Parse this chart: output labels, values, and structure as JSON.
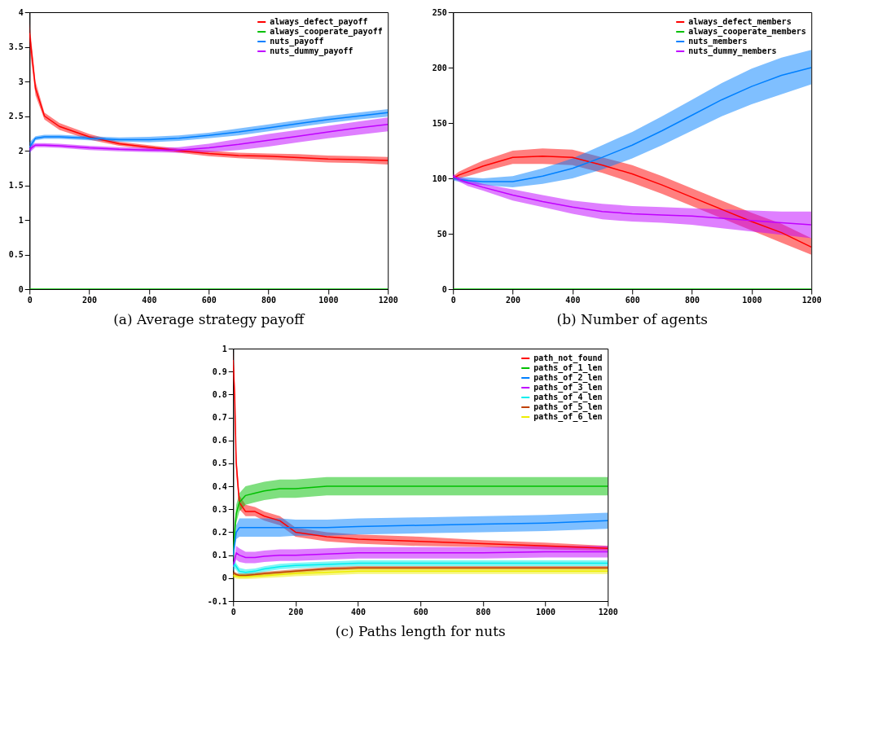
{
  "chart_data": [
    {
      "type": "line",
      "title": "(a) Average strategy payoff",
      "legend": "top right",
      "grid": false,
      "x": [
        0,
        20,
        50,
        100,
        200,
        300,
        400,
        500,
        600,
        700,
        800,
        900,
        1000,
        1100,
        1200
      ],
      "xlim": [
        0,
        1200
      ],
      "xticks": [
        0,
        200,
        400,
        600,
        800,
        1000,
        1200
      ],
      "ylim": [
        0,
        4
      ],
      "yticks": [
        0,
        0.5,
        1,
        1.5,
        2,
        2.5,
        3,
        3.5,
        4
      ],
      "series": [
        {
          "name": "always_defect_payoff",
          "color": "#ff0000",
          "values": [
            3.7,
            2.9,
            2.5,
            2.35,
            2.2,
            2.1,
            2.05,
            2.0,
            1.96,
            1.93,
            1.92,
            1.9,
            1.88,
            1.87,
            1.86
          ],
          "lower": [
            3.5,
            2.8,
            2.45,
            2.3,
            2.16,
            2.07,
            2.02,
            1.97,
            1.92,
            1.89,
            1.87,
            1.85,
            1.83,
            1.82,
            1.8
          ],
          "upper": [
            3.85,
            3.0,
            2.55,
            2.4,
            2.24,
            2.13,
            2.08,
            2.03,
            2.0,
            1.97,
            1.96,
            1.95,
            1.93,
            1.92,
            1.91
          ]
        },
        {
          "name": "always_cooperate_payoff",
          "color": "#00c000",
          "values": [
            0,
            0,
            0,
            0,
            0,
            0,
            0,
            0,
            0,
            0,
            0,
            0,
            0,
            0,
            0
          ]
        },
        {
          "name": "nuts_payoff",
          "color": "#0080ff",
          "values": [
            2.05,
            2.18,
            2.2,
            2.2,
            2.18,
            2.16,
            2.16,
            2.18,
            2.22,
            2.27,
            2.33,
            2.39,
            2.45,
            2.5,
            2.55
          ],
          "lower": [
            1.95,
            2.15,
            2.17,
            2.17,
            2.15,
            2.13,
            2.12,
            2.14,
            2.18,
            2.22,
            2.28,
            2.34,
            2.4,
            2.45,
            2.49
          ],
          "upper": [
            2.12,
            2.21,
            2.23,
            2.23,
            2.21,
            2.19,
            2.2,
            2.22,
            2.26,
            2.32,
            2.38,
            2.44,
            2.5,
            2.55,
            2.6
          ]
        },
        {
          "name": "nuts_dummy_payoff",
          "color": "#c000ff",
          "values": [
            2.02,
            2.08,
            2.08,
            2.07,
            2.04,
            2.02,
            2.01,
            2.01,
            2.04,
            2.09,
            2.15,
            2.21,
            2.27,
            2.33,
            2.38
          ],
          "lower": [
            1.97,
            2.05,
            2.05,
            2.04,
            2.01,
            1.99,
            1.98,
            1.97,
            1.98,
            2.01,
            2.06,
            2.12,
            2.18,
            2.23,
            2.28
          ],
          "upper": [
            2.07,
            2.11,
            2.11,
            2.1,
            2.07,
            2.05,
            2.04,
            2.05,
            2.1,
            2.17,
            2.24,
            2.3,
            2.36,
            2.42,
            2.48
          ]
        }
      ]
    },
    {
      "type": "line",
      "title": "(b) Number of agents",
      "legend": "top right",
      "grid": false,
      "x": [
        0,
        20,
        50,
        100,
        200,
        300,
        400,
        500,
        600,
        700,
        800,
        900,
        1000,
        1100,
        1200
      ],
      "xlim": [
        0,
        1200
      ],
      "xticks": [
        0,
        200,
        400,
        600,
        800,
        1000,
        1200
      ],
      "ylim": [
        0,
        250
      ],
      "yticks": [
        0,
        50,
        100,
        150,
        200,
        250
      ],
      "series": [
        {
          "name": "always_defect_members",
          "color": "#ff0000",
          "values": [
            100,
            103,
            106,
            111,
            119,
            120,
            119,
            112,
            104,
            94,
            83,
            72,
            61,
            51,
            38
          ],
          "lower": [
            98,
            100,
            102,
            106,
            113,
            113,
            112,
            105,
            96,
            86,
            75,
            64,
            53,
            42,
            31
          ],
          "upper": [
            102,
            106,
            110,
            116,
            125,
            127,
            126,
            119,
            112,
            102,
            91,
            80,
            69,
            59,
            46
          ]
        },
        {
          "name": "always_cooperate_members",
          "color": "#00c000",
          "values": [
            0,
            0,
            0,
            0,
            0,
            0,
            0,
            0,
            0,
            0,
            0,
            0,
            0,
            0,
            0
          ]
        },
        {
          "name": "nuts_members",
          "color": "#0080ff",
          "values": [
            100,
            99,
            98,
            97,
            97,
            102,
            109,
            119,
            130,
            143,
            157,
            171,
            183,
            193,
            200
          ],
          "lower": [
            98,
            97,
            95,
            94,
            92,
            95,
            100,
            108,
            118,
            130,
            143,
            156,
            167,
            176,
            185
          ],
          "upper": [
            102,
            101,
            101,
            100,
            102,
            109,
            118,
            130,
            142,
            156,
            171,
            186,
            199,
            209,
            216
          ]
        },
        {
          "name": "nuts_dummy_members",
          "color": "#c000ff",
          "values": [
            102,
            99,
            96,
            92,
            85,
            79,
            74,
            70,
            68,
            67,
            66,
            64,
            62,
            60,
            58
          ],
          "lower": [
            100,
            97,
            93,
            89,
            80,
            74,
            68,
            63,
            61,
            60,
            58,
            55,
            52,
            49,
            46
          ],
          "upper": [
            104,
            101,
            99,
            95,
            90,
            85,
            80,
            77,
            75,
            74,
            73,
            72,
            71,
            70,
            70
          ]
        }
      ]
    },
    {
      "type": "line",
      "title": "(c) Paths length for nuts",
      "legend": "top right",
      "grid": false,
      "x": [
        0,
        5,
        10,
        20,
        40,
        70,
        100,
        150,
        200,
        300,
        400,
        600,
        800,
        1000,
        1200
      ],
      "xlim": [
        0,
        1200
      ],
      "xticks": [
        0,
        200,
        400,
        600,
        800,
        1000,
        1200
      ],
      "ylim": [
        -0.1,
        1
      ],
      "yticks": [
        -0.1,
        0,
        0.1,
        0.2,
        0.3,
        0.4,
        0.5,
        0.6,
        0.7,
        0.8,
        0.9,
        1
      ],
      "series": [
        {
          "name": "path_not_found",
          "color": "#ff0000",
          "values": [
            0.95,
            0.8,
            0.5,
            0.33,
            0.29,
            0.29,
            0.27,
            0.25,
            0.2,
            0.18,
            0.17,
            0.16,
            0.15,
            0.14,
            0.13
          ],
          "lower": [
            0.9,
            0.75,
            0.45,
            0.3,
            0.27,
            0.27,
            0.25,
            0.23,
            0.18,
            0.16,
            0.15,
            0.14,
            0.135,
            0.125,
            0.12
          ],
          "upper": [
            0.99,
            0.85,
            0.55,
            0.36,
            0.32,
            0.31,
            0.29,
            0.27,
            0.22,
            0.2,
            0.19,
            0.18,
            0.165,
            0.155,
            0.14
          ]
        },
        {
          "name": "paths_of_1_len",
          "color": "#00c000",
          "values": [
            0.1,
            0.2,
            0.28,
            0.33,
            0.36,
            0.37,
            0.38,
            0.39,
            0.39,
            0.4,
            0.4,
            0.4,
            0.4,
            0.4,
            0.4
          ],
          "lower": [
            0.07,
            0.16,
            0.24,
            0.29,
            0.32,
            0.33,
            0.34,
            0.35,
            0.35,
            0.36,
            0.36,
            0.36,
            0.36,
            0.36,
            0.36
          ],
          "upper": [
            0.13,
            0.24,
            0.32,
            0.37,
            0.4,
            0.41,
            0.42,
            0.43,
            0.43,
            0.44,
            0.44,
            0.44,
            0.44,
            0.44,
            0.44
          ]
        },
        {
          "name": "paths_of_2_len",
          "color": "#0080ff",
          "values": [
            0.1,
            0.15,
            0.2,
            0.22,
            0.22,
            0.22,
            0.22,
            0.22,
            0.22,
            0.22,
            0.225,
            0.23,
            0.235,
            0.24,
            0.25
          ],
          "lower": [
            0.07,
            0.12,
            0.17,
            0.18,
            0.18,
            0.18,
            0.18,
            0.18,
            0.185,
            0.185,
            0.19,
            0.195,
            0.2,
            0.205,
            0.215
          ],
          "upper": [
            0.13,
            0.18,
            0.23,
            0.26,
            0.26,
            0.26,
            0.26,
            0.26,
            0.255,
            0.255,
            0.26,
            0.265,
            0.27,
            0.275,
            0.285
          ]
        },
        {
          "name": "paths_of_3_len",
          "color": "#c000ff",
          "values": [
            0.05,
            0.08,
            0.11,
            0.1,
            0.09,
            0.09,
            0.095,
            0.1,
            0.1,
            0.105,
            0.11,
            0.11,
            0.11,
            0.115,
            0.115
          ],
          "lower": [
            0.03,
            0.06,
            0.08,
            0.07,
            0.065,
            0.065,
            0.07,
            0.075,
            0.075,
            0.08,
            0.085,
            0.085,
            0.085,
            0.09,
            0.09
          ],
          "upper": [
            0.07,
            0.1,
            0.14,
            0.13,
            0.115,
            0.115,
            0.12,
            0.125,
            0.125,
            0.13,
            0.135,
            0.135,
            0.135,
            0.14,
            0.14
          ]
        },
        {
          "name": "paths_of_4_len",
          "color": "#00eeee",
          "values": [
            0.05,
            0.06,
            0.05,
            0.03,
            0.025,
            0.03,
            0.04,
            0.05,
            0.055,
            0.06,
            0.065,
            0.065,
            0.065,
            0.065,
            0.065
          ],
          "lower": [
            0.03,
            0.04,
            0.035,
            0.015,
            0.012,
            0.018,
            0.028,
            0.038,
            0.043,
            0.048,
            0.053,
            0.053,
            0.053,
            0.053,
            0.053
          ],
          "upper": [
            0.07,
            0.08,
            0.065,
            0.045,
            0.038,
            0.042,
            0.052,
            0.062,
            0.067,
            0.072,
            0.077,
            0.077,
            0.077,
            0.077,
            0.077
          ]
        },
        {
          "name": "paths_of_5_len",
          "color": "#c04000",
          "values": [
            0.02,
            0.02,
            0.015,
            0.012,
            0.012,
            0.015,
            0.02,
            0.025,
            0.03,
            0.04,
            0.045,
            0.045,
            0.045,
            0.045,
            0.045
          ],
          "lower": [
            0.01,
            0.012,
            0.007,
            0.004,
            0.004,
            0.007,
            0.012,
            0.017,
            0.022,
            0.032,
            0.037,
            0.037,
            0.037,
            0.037,
            0.037
          ],
          "upper": [
            0.03,
            0.028,
            0.023,
            0.02,
            0.02,
            0.023,
            0.028,
            0.033,
            0.038,
            0.048,
            0.053,
            0.053,
            0.053,
            0.053,
            0.053
          ]
        },
        {
          "name": "paths_of_6_len",
          "color": "#eeee00",
          "values": [
            0.01,
            0.01,
            0.008,
            0.006,
            0.006,
            0.008,
            0.01,
            0.015,
            0.02,
            0.025,
            0.03,
            0.03,
            0.03,
            0.03,
            0.03
          ],
          "lower": [
            0,
            0,
            -0.002,
            -0.004,
            -0.004,
            -0.002,
            0,
            0.004,
            0.008,
            0.013,
            0.018,
            0.018,
            0.018,
            0.018,
            0.018
          ],
          "upper": [
            0.02,
            0.02,
            0.018,
            0.016,
            0.016,
            0.018,
            0.02,
            0.026,
            0.032,
            0.037,
            0.042,
            0.042,
            0.042,
            0.042,
            0.042
          ]
        }
      ]
    }
  ]
}
